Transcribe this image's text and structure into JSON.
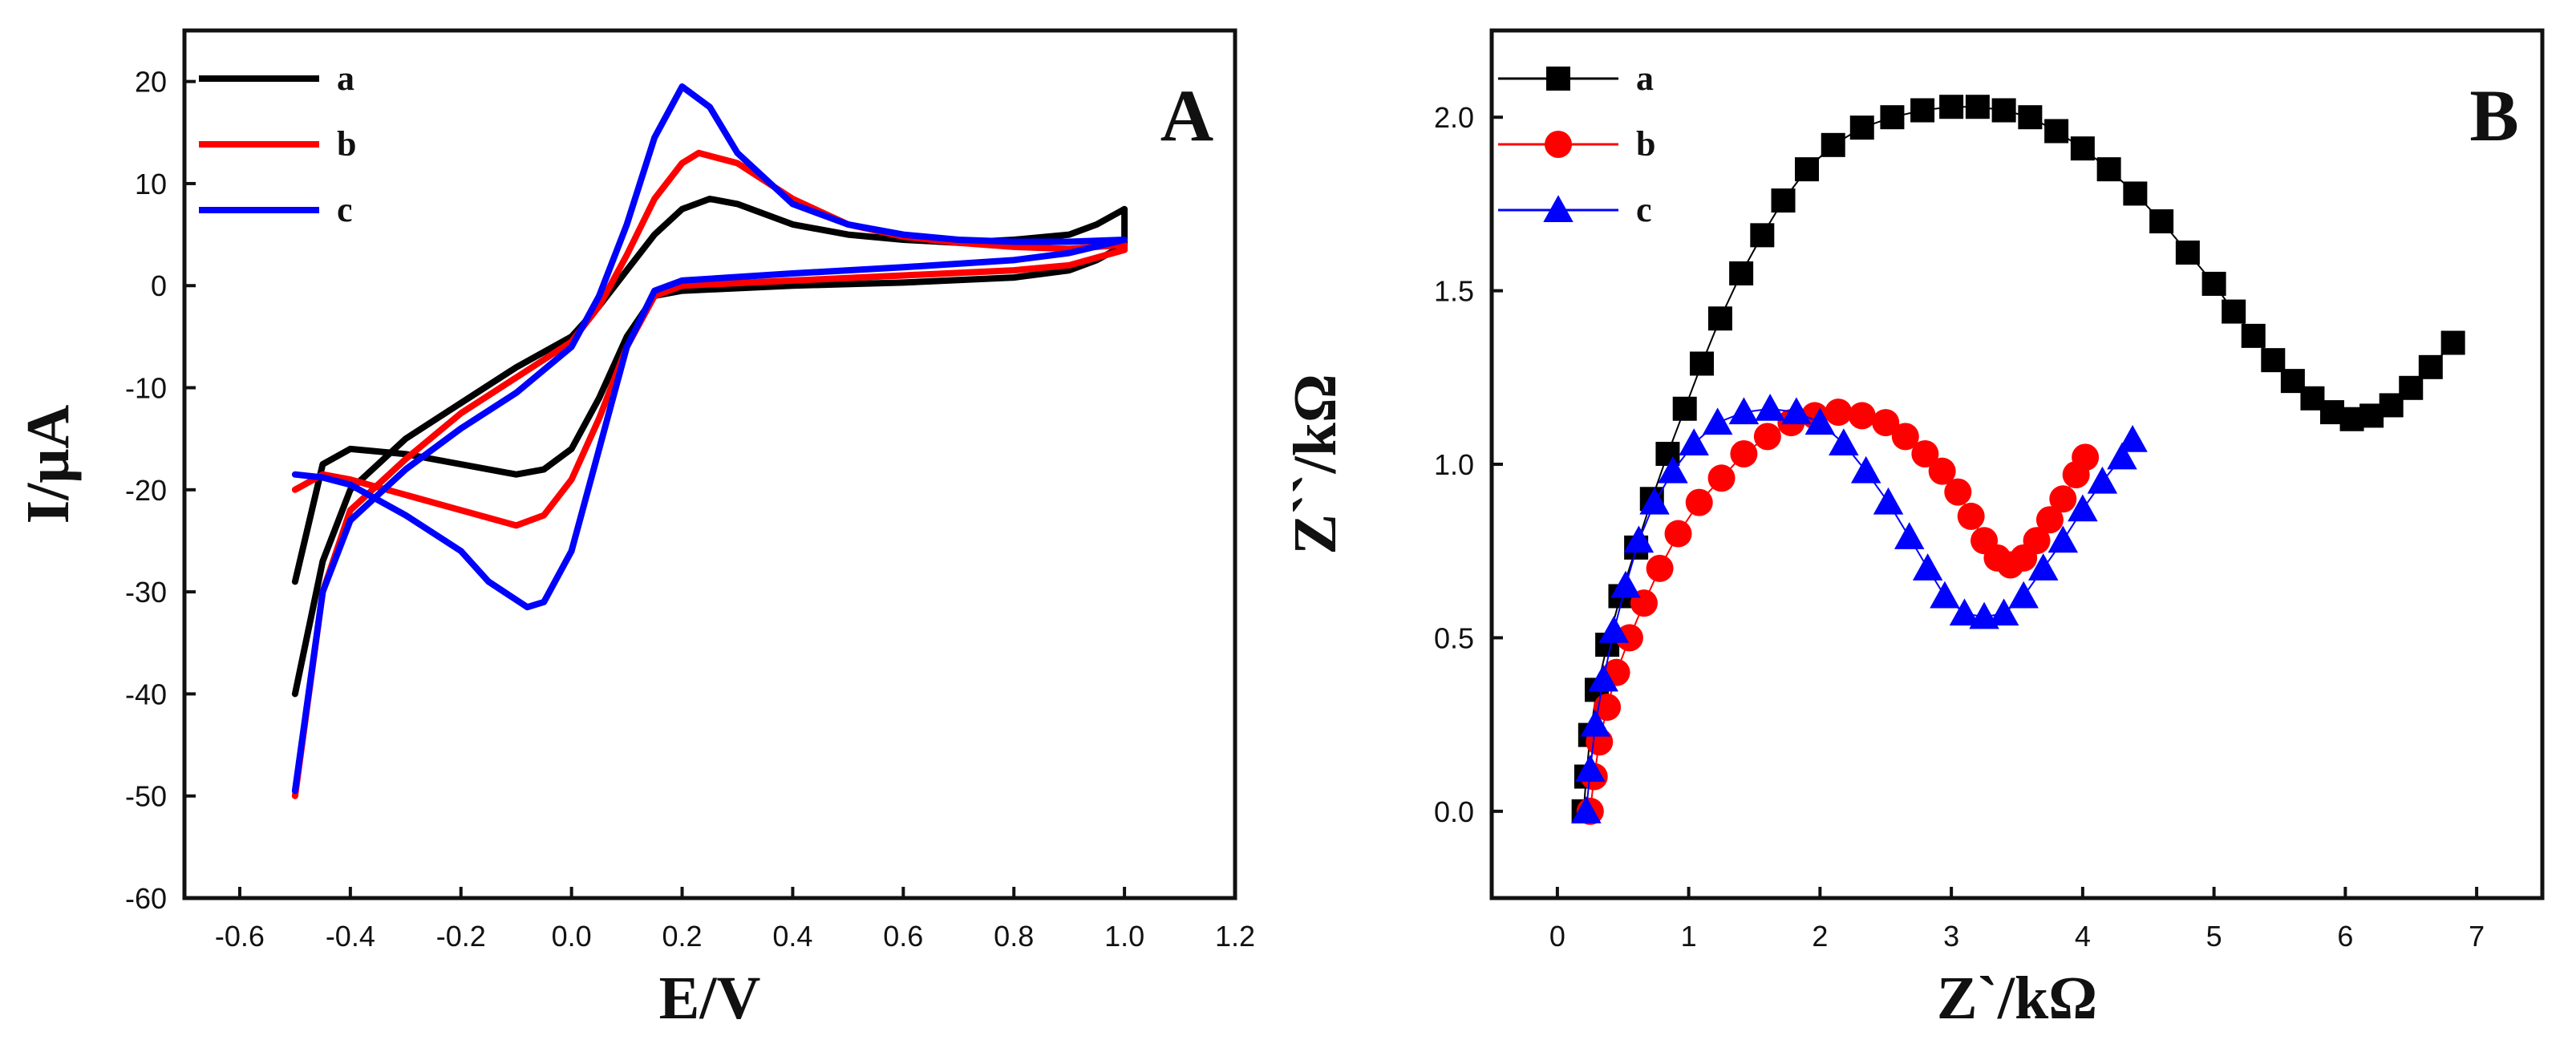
{
  "chart_data": [
    {
      "type": "line",
      "panel_label": "A",
      "xlabel": "E/V",
      "ylabel": "I/μA",
      "xlim": [
        -0.7,
        1.2
      ],
      "ylim": [
        -60,
        25
      ],
      "x_ticks": [
        -0.6,
        -0.4,
        -0.2,
        0.0,
        0.2,
        0.4,
        0.6,
        0.8,
        1.0,
        1.2
      ],
      "x_tick_labels": [
        "-0.6",
        "-0.4",
        "-0.2",
        "0.0",
        "0.2",
        "0.4",
        "0.6",
        "0.8",
        "1.0",
        "1.2"
      ],
      "y_ticks": [
        -60,
        -50,
        -40,
        -30,
        -20,
        -10,
        0,
        10,
        20
      ],
      "y_tick_labels": [
        "-60",
        "-50",
        "-40",
        "-30",
        "-20",
        "-10",
        "0",
        "10",
        "20"
      ],
      "legend_position": "top-left",
      "grid": false,
      "series": [
        {
          "name": "a",
          "color": "#000000",
          "points": [
            [
              -0.5,
              -40
            ],
            [
              -0.45,
              -27
            ],
            [
              -0.4,
              -20
            ],
            [
              -0.3,
              -15
            ],
            [
              -0.2,
              -11.5
            ],
            [
              -0.1,
              -8
            ],
            [
              0.0,
              -5
            ],
            [
              0.05,
              -2
            ],
            [
              0.1,
              1.5
            ],
            [
              0.15,
              5
            ],
            [
              0.2,
              7.5
            ],
            [
              0.25,
              8.5
            ],
            [
              0.3,
              8
            ],
            [
              0.4,
              6
            ],
            [
              0.5,
              5
            ],
            [
              0.6,
              4.5
            ],
            [
              0.7,
              4.2
            ],
            [
              0.8,
              4.5
            ],
            [
              0.9,
              5
            ],
            [
              0.95,
              6
            ],
            [
              1.0,
              7.5
            ],
            [
              1.0,
              4
            ],
            [
              0.95,
              2.5
            ],
            [
              0.9,
              1.5
            ],
            [
              0.8,
              0.8
            ],
            [
              0.6,
              0.3
            ],
            [
              0.4,
              0
            ],
            [
              0.2,
              -0.5
            ],
            [
              0.15,
              -1
            ],
            [
              0.1,
              -5
            ],
            [
              0.05,
              -11
            ],
            [
              0.0,
              -16
            ],
            [
              -0.05,
              -18
            ],
            [
              -0.1,
              -18.5
            ],
            [
              -0.2,
              -17.5
            ],
            [
              -0.3,
              -16.5
            ],
            [
              -0.4,
              -16
            ],
            [
              -0.45,
              -17.5
            ],
            [
              -0.5,
              -29
            ]
          ]
        },
        {
          "name": "b",
          "color": "#ff0000",
          "points": [
            [
              -0.5,
              -50
            ],
            [
              -0.45,
              -30
            ],
            [
              -0.4,
              -22
            ],
            [
              -0.3,
              -17
            ],
            [
              -0.2,
              -12.5
            ],
            [
              -0.1,
              -9
            ],
            [
              0.0,
              -5.5
            ],
            [
              0.05,
              -2
            ],
            [
              0.1,
              3
            ],
            [
              0.15,
              8.5
            ],
            [
              0.2,
              12
            ],
            [
              0.23,
              13
            ],
            [
              0.3,
              12
            ],
            [
              0.4,
              8.5
            ],
            [
              0.5,
              6
            ],
            [
              0.6,
              4.8
            ],
            [
              0.7,
              4.2
            ],
            [
              0.8,
              3.8
            ],
            [
              0.9,
              3.6
            ],
            [
              1.0,
              4
            ],
            [
              1.0,
              3.5
            ],
            [
              0.9,
              2
            ],
            [
              0.8,
              1.5
            ],
            [
              0.6,
              1
            ],
            [
              0.4,
              0.5
            ],
            [
              0.2,
              0
            ],
            [
              0.15,
              -1
            ],
            [
              0.1,
              -6
            ],
            [
              0.05,
              -13
            ],
            [
              0.0,
              -19
            ],
            [
              -0.05,
              -22.5
            ],
            [
              -0.1,
              -23.5
            ],
            [
              -0.2,
              -22
            ],
            [
              -0.3,
              -20.5
            ],
            [
              -0.4,
              -19
            ],
            [
              -0.45,
              -18.5
            ],
            [
              -0.5,
              -20
            ]
          ]
        },
        {
          "name": "c",
          "color": "#0000ff",
          "points": [
            [
              -0.5,
              -49.5
            ],
            [
              -0.45,
              -30
            ],
            [
              -0.4,
              -23
            ],
            [
              -0.3,
              -18
            ],
            [
              -0.2,
              -14
            ],
            [
              -0.1,
              -10.5
            ],
            [
              0.0,
              -6
            ],
            [
              0.05,
              -1
            ],
            [
              0.1,
              6
            ],
            [
              0.15,
              14.5
            ],
            [
              0.2,
              19.5
            ],
            [
              0.25,
              17.5
            ],
            [
              0.3,
              13
            ],
            [
              0.4,
              8
            ],
            [
              0.5,
              6
            ],
            [
              0.6,
              5
            ],
            [
              0.7,
              4.5
            ],
            [
              0.8,
              4.3
            ],
            [
              0.9,
              4.3
            ],
            [
              1.0,
              4.5
            ],
            [
              1.0,
              4.5
            ],
            [
              0.9,
              3.2
            ],
            [
              0.8,
              2.5
            ],
            [
              0.6,
              1.8
            ],
            [
              0.4,
              1.2
            ],
            [
              0.2,
              0.5
            ],
            [
              0.15,
              -0.5
            ],
            [
              0.1,
              -6
            ],
            [
              0.05,
              -16
            ],
            [
              0.0,
              -26
            ],
            [
              -0.05,
              -31
            ],
            [
              -0.08,
              -31.5
            ],
            [
              -0.15,
              -29
            ],
            [
              -0.2,
              -26
            ],
            [
              -0.3,
              -22.5
            ],
            [
              -0.4,
              -19.5
            ],
            [
              -0.45,
              -18.8
            ],
            [
              -0.5,
              -18.5
            ]
          ]
        }
      ]
    },
    {
      "type": "scatter",
      "panel_label": "B",
      "xlabel": "Z`/kΩ",
      "ylabel": "Z``/kΩ",
      "xlim": [
        -0.5,
        7.5
      ],
      "ylim": [
        -0.25,
        2.25
      ],
      "x_ticks": [
        0,
        1,
        2,
        3,
        4,
        5,
        6,
        7
      ],
      "x_tick_labels": [
        "0",
        "1",
        "2",
        "3",
        "4",
        "5",
        "6",
        "7"
      ],
      "y_ticks": [
        0.0,
        0.5,
        1.0,
        1.5,
        2.0
      ],
      "y_tick_labels": [
        "0.0",
        "0.5",
        "1.0",
        "1.5",
        "2.0"
      ],
      "legend_position": "top-left",
      "grid": false,
      "series": [
        {
          "name": "a",
          "color": "#000000",
          "marker": "square",
          "points": [
            [
              0.2,
              0.0
            ],
            [
              0.22,
              0.1
            ],
            [
              0.25,
              0.22
            ],
            [
              0.3,
              0.35
            ],
            [
              0.38,
              0.48
            ],
            [
              0.48,
              0.62
            ],
            [
              0.6,
              0.76
            ],
            [
              0.72,
              0.9
            ],
            [
              0.84,
              1.03
            ],
            [
              0.97,
              1.16
            ],
            [
              1.1,
              1.29
            ],
            [
              1.24,
              1.42
            ],
            [
              1.4,
              1.55
            ],
            [
              1.56,
              1.66
            ],
            [
              1.72,
              1.76
            ],
            [
              1.9,
              1.85
            ],
            [
              2.1,
              1.92
            ],
            [
              2.32,
              1.97
            ],
            [
              2.55,
              2.0
            ],
            [
              2.78,
              2.02
            ],
            [
              3.0,
              2.03
            ],
            [
              3.2,
              2.03
            ],
            [
              3.4,
              2.02
            ],
            [
              3.6,
              2.0
            ],
            [
              3.8,
              1.96
            ],
            [
              4.0,
              1.91
            ],
            [
              4.2,
              1.85
            ],
            [
              4.4,
              1.78
            ],
            [
              4.6,
              1.7
            ],
            [
              4.8,
              1.61
            ],
            [
              5.0,
              1.52
            ],
            [
              5.15,
              1.44
            ],
            [
              5.3,
              1.37
            ],
            [
              5.45,
              1.3
            ],
            [
              5.6,
              1.24
            ],
            [
              5.75,
              1.19
            ],
            [
              5.9,
              1.15
            ],
            [
              6.05,
              1.13
            ],
            [
              6.2,
              1.14
            ],
            [
              6.35,
              1.17
            ],
            [
              6.5,
              1.22
            ],
            [
              6.65,
              1.28
            ],
            [
              6.82,
              1.35
            ]
          ]
        },
        {
          "name": "b",
          "color": "#ff0000",
          "marker": "circle",
          "points": [
            [
              0.25,
              0.0
            ],
            [
              0.28,
              0.1
            ],
            [
              0.32,
              0.2
            ],
            [
              0.38,
              0.3
            ],
            [
              0.45,
              0.4
            ],
            [
              0.55,
              0.5
            ],
            [
              0.66,
              0.6
            ],
            [
              0.78,
              0.7
            ],
            [
              0.92,
              0.8
            ],
            [
              1.08,
              0.89
            ],
            [
              1.25,
              0.96
            ],
            [
              1.42,
              1.03
            ],
            [
              1.6,
              1.08
            ],
            [
              1.78,
              1.12
            ],
            [
              1.96,
              1.14
            ],
            [
              2.14,
              1.15
            ],
            [
              2.32,
              1.14
            ],
            [
              2.5,
              1.12
            ],
            [
              2.65,
              1.08
            ],
            [
              2.8,
              1.03
            ],
            [
              2.93,
              0.98
            ],
            [
              3.05,
              0.92
            ],
            [
              3.15,
              0.85
            ],
            [
              3.25,
              0.78
            ],
            [
              3.35,
              0.73
            ],
            [
              3.45,
              0.71
            ],
            [
              3.55,
              0.73
            ],
            [
              3.65,
              0.78
            ],
            [
              3.75,
              0.84
            ],
            [
              3.85,
              0.9
            ],
            [
              3.95,
              0.97
            ],
            [
              4.02,
              1.02
            ]
          ]
        },
        {
          "name": "c",
          "color": "#0000ff",
          "marker": "triangle",
          "points": [
            [
              0.22,
              0.0
            ],
            [
              0.25,
              0.12
            ],
            [
              0.29,
              0.25
            ],
            [
              0.35,
              0.38
            ],
            [
              0.43,
              0.52
            ],
            [
              0.52,
              0.65
            ],
            [
              0.62,
              0.78
            ],
            [
              0.74,
              0.89
            ],
            [
              0.88,
              0.98
            ],
            [
              1.04,
              1.06
            ],
            [
              1.22,
              1.12
            ],
            [
              1.42,
              1.15
            ],
            [
              1.62,
              1.16
            ],
            [
              1.82,
              1.15
            ],
            [
              2.0,
              1.12
            ],
            [
              2.18,
              1.06
            ],
            [
              2.35,
              0.98
            ],
            [
              2.52,
              0.89
            ],
            [
              2.68,
              0.79
            ],
            [
              2.82,
              0.7
            ],
            [
              2.95,
              0.62
            ],
            [
              3.1,
              0.57
            ],
            [
              3.25,
              0.56
            ],
            [
              3.4,
              0.57
            ],
            [
              3.55,
              0.62
            ],
            [
              3.7,
              0.7
            ],
            [
              3.85,
              0.78
            ],
            [
              4.0,
              0.87
            ],
            [
              4.15,
              0.95
            ],
            [
              4.3,
              1.02
            ],
            [
              4.38,
              1.07
            ]
          ]
        }
      ]
    }
  ]
}
